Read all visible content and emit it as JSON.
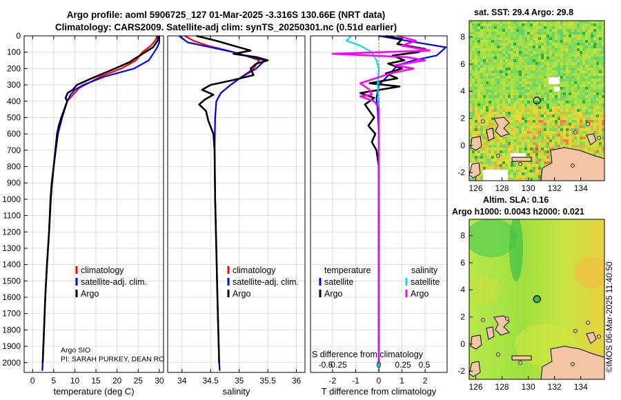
{
  "header": {
    "title_line1": "Argo profile: aoml 5906725_127 01-Mar-2025 -3.316S 130.66E (NRT data)",
    "title_line2": "Climatology: CARS2009. Satellite-adj clim: synTS_20250301.nc (0.51d earlier)"
  },
  "map_sst": {
    "title": "sat. SST: 29.4 Argo: 29.8"
  },
  "map_sla": {
    "title_line1": "Altim. SLA: 0.16",
    "title_line2": "Argo h1000: 0.0043 h2000: 0.021"
  },
  "side_label": "©IMOS 06-Mar-2025 11:40:50",
  "colors": {
    "climatology": "#ff0000",
    "satellite": "#0000ff",
    "argo": "#000000",
    "satellite_diff": "#00e0f0",
    "argo_sal_diff": "#ff00ff"
  },
  "annotations": {
    "institution": "Argo SIO",
    "pi": "PI: SARAH PURKEY, DEAN RO"
  },
  "chart_data": [
    {
      "type": "line",
      "name": "temperature",
      "xlabel": "temperature (deg C)",
      "xlim": [
        -2,
        31
      ],
      "ylim": [
        2060,
        0
      ],
      "xticks": [
        0,
        5,
        10,
        15,
        20,
        25,
        30
      ],
      "yticks": [
        0,
        100,
        200,
        300,
        400,
        500,
        600,
        700,
        800,
        900,
        1000,
        1100,
        1200,
        1300,
        1400,
        1500,
        1600,
        1700,
        1800,
        1900,
        2000
      ],
      "legend": [
        "climatology",
        "satellite-adj. clim.",
        "Argo"
      ],
      "series": [
        {
          "name": "climatology",
          "color": "#ff0000",
          "points": [
            [
              29.5,
              0
            ],
            [
              29,
              30
            ],
            [
              28,
              60
            ],
            [
              26,
              100
            ],
            [
              24.5,
              150
            ],
            [
              21,
              200
            ],
            [
              16,
              250
            ],
            [
              11,
              320
            ],
            [
              8.2,
              400
            ],
            [
              7,
              500
            ],
            [
              6,
              600
            ],
            [
              5.5,
              700
            ],
            [
              5,
              800
            ],
            [
              4.5,
              900
            ],
            [
              4.2,
              1000
            ],
            [
              3.9,
              1200
            ],
            [
              3.4,
              1400
            ],
            [
              3,
              1600
            ],
            [
              2.7,
              1800
            ],
            [
              2.4,
              2000
            ],
            [
              2.3,
              2050
            ]
          ]
        },
        {
          "name": "satellite-adj. clim.",
          "color": "#0000ff",
          "points": [
            [
              30,
              0
            ],
            [
              30,
              40
            ],
            [
              29.5,
              70
            ],
            [
              28.8,
              100
            ],
            [
              27.5,
              150
            ],
            [
              24,
              200
            ],
            [
              17,
              250
            ],
            [
              12,
              300
            ],
            [
              10,
              330
            ],
            [
              9,
              360
            ],
            [
              8.2,
              400
            ],
            [
              7,
              500
            ],
            [
              6,
              600
            ],
            [
              5.5,
              700
            ],
            [
              5,
              800
            ],
            [
              4.5,
              900
            ],
            [
              4.2,
              1000
            ],
            [
              3.9,
              1200
            ],
            [
              3.4,
              1400
            ],
            [
              3,
              1600
            ],
            [
              2.7,
              1800
            ],
            [
              2.4,
              2000
            ],
            [
              2.3,
              2050
            ]
          ]
        },
        {
          "name": "Argo",
          "color": "#000000",
          "points": [
            [
              29.8,
              0
            ],
            [
              29.6,
              30
            ],
            [
              28.5,
              70
            ],
            [
              26,
              110
            ],
            [
              23,
              160
            ],
            [
              19.5,
              200
            ],
            [
              14,
              260
            ],
            [
              10.5,
              300
            ],
            [
              9.5,
              330
            ],
            [
              8.3,
              350
            ],
            [
              7.8,
              380
            ],
            [
              8.2,
              400
            ],
            [
              7.5,
              450
            ],
            [
              6.8,
              500
            ],
            [
              6.2,
              550
            ],
            [
              5.8,
              600
            ],
            [
              5.4,
              700
            ],
            [
              5,
              800
            ],
            [
              4.6,
              900
            ],
            [
              4.3,
              1000
            ],
            [
              3.9,
              1200
            ],
            [
              3.4,
              1400
            ],
            [
              3,
              1600
            ],
            [
              2.7,
              1800
            ],
            [
              2.4,
              2000
            ]
          ]
        }
      ]
    },
    {
      "type": "line",
      "name": "salinity",
      "xlabel": "salinity",
      "xlim": [
        33.75,
        36.15
      ],
      "ylim": [
        2060,
        0
      ],
      "xticks": [
        34,
        34.5,
        35,
        35.5,
        36
      ],
      "legend": [
        "climatology",
        "satellite-adj. clim.",
        "Argo"
      ],
      "series": [
        {
          "name": "climatology",
          "color": "#ff0000",
          "points": [
            [
              34.05,
              0
            ],
            [
              34.2,
              30
            ],
            [
              34.45,
              60
            ],
            [
              34.8,
              90
            ],
            [
              35.1,
              120
            ],
            [
              35.35,
              150
            ],
            [
              35.25,
              200
            ],
            [
              35.05,
              250
            ],
            [
              34.85,
              300
            ],
            [
              34.68,
              350
            ],
            [
              34.6,
              400
            ],
            [
              34.58,
              500
            ],
            [
              34.57,
              700
            ],
            [
              34.58,
              1000
            ],
            [
              34.6,
              1300
            ],
            [
              34.62,
              1600
            ],
            [
              34.65,
              2000
            ],
            [
              34.66,
              2050
            ]
          ]
        },
        {
          "name": "satellite-adj. clim.",
          "color": "#0000ff",
          "points": [
            [
              33.95,
              0
            ],
            [
              34.1,
              40
            ],
            [
              34.5,
              70
            ],
            [
              34.9,
              100
            ],
            [
              35.2,
              130
            ],
            [
              35.45,
              150
            ],
            [
              35.3,
              200
            ],
            [
              35.05,
              250
            ],
            [
              34.85,
              300
            ],
            [
              34.68,
              350
            ],
            [
              34.6,
              400
            ],
            [
              34.58,
              500
            ],
            [
              34.57,
              700
            ],
            [
              34.58,
              1000
            ],
            [
              34.6,
              1300
            ],
            [
              34.62,
              1600
            ],
            [
              34.65,
              2000
            ],
            [
              34.66,
              2050
            ]
          ]
        },
        {
          "name": "Argo",
          "color": "#000000",
          "points": [
            [
              34.25,
              0
            ],
            [
              34.6,
              30
            ],
            [
              35.0,
              70
            ],
            [
              35.2,
              90
            ],
            [
              34.9,
              110
            ],
            [
              35.3,
              130
            ],
            [
              35.5,
              150
            ],
            [
              35.3,
              170
            ],
            [
              35.2,
              200
            ],
            [
              35.25,
              240
            ],
            [
              34.9,
              270
            ],
            [
              34.5,
              300
            ],
            [
              34.35,
              330
            ],
            [
              34.55,
              360
            ],
            [
              34.4,
              390
            ],
            [
              34.3,
              420
            ],
            [
              34.42,
              460
            ],
            [
              34.46,
              520
            ],
            [
              34.55,
              600
            ],
            [
              34.57,
              700
            ],
            [
              34.58,
              1000
            ],
            [
              34.6,
              1300
            ],
            [
              34.62,
              1600
            ],
            [
              34.65,
              2000
            ]
          ]
        }
      ]
    },
    {
      "type": "line",
      "name": "differences",
      "xlabel": "T difference from climatology",
      "xlim": [
        -2.95,
        2.95
      ],
      "ylim": [
        2060,
        0
      ],
      "xticks": [
        -2,
        -1,
        0,
        1,
        2
      ],
      "secondary_xlabel": "S difference from climatology",
      "secondary_xticks": [
        "-0.5",
        "-0.25",
        "0",
        "0.25",
        "0.5"
      ],
      "legend_temperature_title": "temperature",
      "legend_salinity_title": "salinity",
      "legend_temperature": [
        "satellite",
        "Argo"
      ],
      "legend_salinity": [
        "satellite",
        "Argo"
      ],
      "series": [
        {
          "name": "T satellite",
          "color": "#0000ff",
          "points": [
            [
              0,
              0
            ],
            [
              1.2,
              30
            ],
            [
              2.9,
              70
            ],
            [
              2.5,
              120
            ],
            [
              1.5,
              150
            ],
            [
              0.8,
              180
            ],
            [
              0.5,
              230
            ],
            [
              0,
              300
            ],
            [
              -0.1,
              380
            ],
            [
              -0.05,
              450
            ],
            [
              0,
              600
            ],
            [
              0,
              2050
            ]
          ]
        },
        {
          "name": "T Argo",
          "color": "#000000",
          "points": [
            [
              0.3,
              0
            ],
            [
              1.0,
              20
            ],
            [
              0.8,
              50
            ],
            [
              2.0,
              80
            ],
            [
              1.7,
              100
            ],
            [
              0.6,
              120
            ],
            [
              1.1,
              150
            ],
            [
              0.4,
              170
            ],
            [
              1.0,
              200
            ],
            [
              0.3,
              230
            ],
            [
              0.8,
              260
            ],
            [
              -0.4,
              290
            ],
            [
              0.9,
              310
            ],
            [
              -0.8,
              350
            ],
            [
              -0.2,
              380
            ],
            [
              -0.6,
              420
            ],
            [
              -0.4,
              460
            ],
            [
              -0.2,
              500
            ],
            [
              -0.45,
              550
            ],
            [
              -0.15,
              600
            ],
            [
              -0.3,
              650
            ],
            [
              -0.1,
              700
            ],
            [
              0,
              800
            ],
            [
              0,
              1000
            ],
            [
              0,
              1200
            ],
            [
              0,
              1600
            ],
            [
              0,
              2000
            ]
          ]
        },
        {
          "name": "S satellite",
          "color": "#00e0f0",
          "points": [
            [
              -1.2,
              0
            ],
            [
              -1.4,
              30
            ],
            [
              -0.8,
              60
            ],
            [
              -0.3,
              100
            ],
            [
              -0.1,
              150
            ],
            [
              0,
              200
            ],
            [
              -0.05,
              300
            ],
            [
              0,
              400
            ],
            [
              0,
              500
            ],
            [
              0,
              700
            ],
            [
              0,
              2050
            ]
          ]
        },
        {
          "name": "S Argo",
          "color": "#ff00ff",
          "points": [
            [
              0.8,
              0
            ],
            [
              1.6,
              30
            ],
            [
              1.0,
              60
            ],
            [
              2.2,
              90
            ],
            [
              -2.0,
              110
            ],
            [
              1.2,
              130
            ],
            [
              2.0,
              150
            ],
            [
              0.7,
              180
            ],
            [
              1.5,
              200
            ],
            [
              0.5,
              230
            ],
            [
              -0.8,
              290
            ],
            [
              -0.4,
              330
            ],
            [
              -0.3,
              360
            ],
            [
              -0.8,
              370
            ],
            [
              -0.2,
              400
            ],
            [
              0,
              440
            ],
            [
              0,
              500
            ],
            [
              0,
              600
            ],
            [
              0,
              2000
            ]
          ]
        }
      ]
    },
    {
      "type": "heatmap",
      "name": "sst_map",
      "xlim": [
        125.5,
        135.8
      ],
      "ylim": [
        -2.6,
        9.2
      ],
      "xticks": [
        126,
        128,
        130,
        132,
        134
      ],
      "yticks": [
        -2,
        0,
        2,
        4,
        6,
        8
      ],
      "argo_position": [
        130.66,
        3.316
      ]
    },
    {
      "type": "heatmap",
      "name": "sla_map",
      "xlim": [
        125.5,
        135.8
      ],
      "ylim": [
        -2.6,
        9.2
      ],
      "xticks": [
        126,
        128,
        130,
        132,
        134
      ],
      "yticks": [
        -2,
        0,
        2,
        4,
        6,
        8
      ],
      "argo_position": [
        130.66,
        3.316
      ]
    }
  ]
}
